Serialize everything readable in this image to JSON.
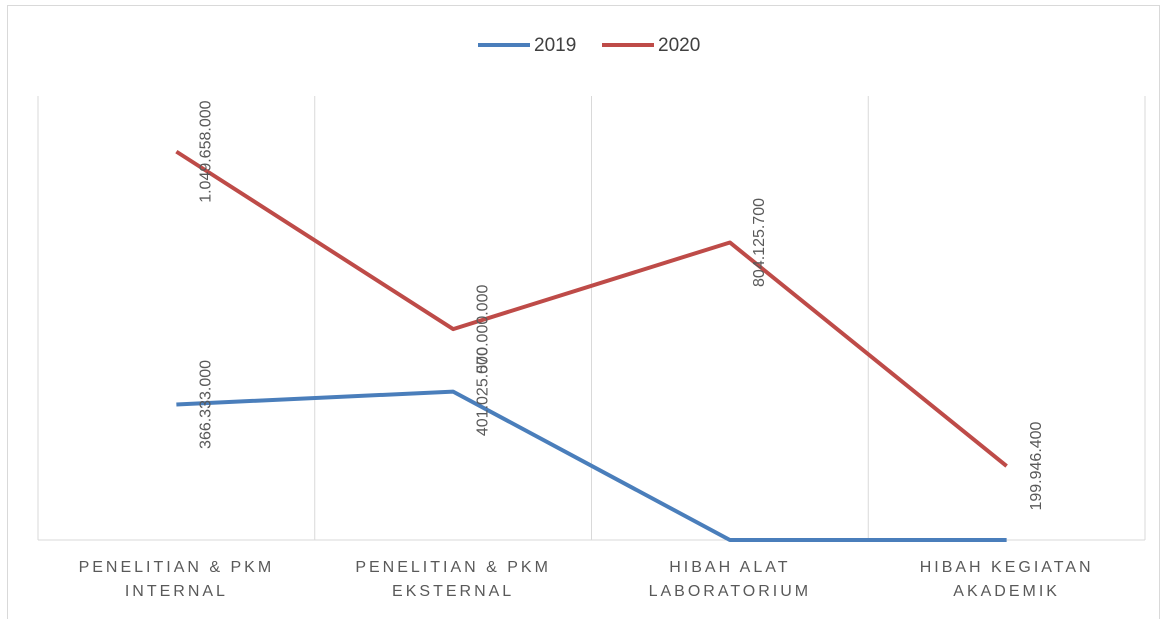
{
  "chart_data": {
    "type": "line",
    "categories": [
      "PENELITIAN & PKM INTERNAL",
      "PENELITIAN & PKM EKSTERNAL",
      "HIBAH ALAT LABORATORIUM",
      "HIBAH KEGIATAN AKADEMIK"
    ],
    "series": [
      {
        "name": "2019",
        "color": "#4a7ebb",
        "values": [
          366333000,
          401025000,
          0,
          0
        ],
        "value_labels": [
          "366.333.000",
          "401.025.000",
          null,
          null
        ]
      },
      {
        "name": "2020",
        "color": "#be4b48",
        "values": [
          1049658000,
          570000000,
          804125700,
          199946400
        ],
        "value_labels": [
          "1.049.658.000",
          "570.000.000",
          "804.125.700",
          "199.946.400"
        ]
      }
    ],
    "ylim": [
      0,
      1200000000
    ],
    "legend": "top",
    "grid": true
  }
}
